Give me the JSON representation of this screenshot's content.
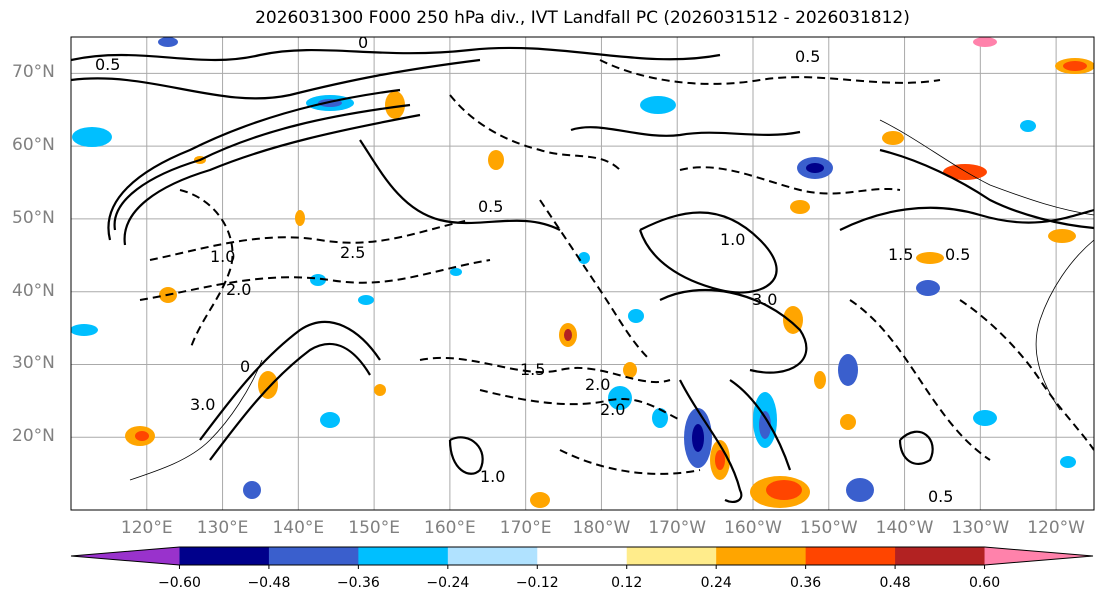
{
  "title": "2026031300 F000 250 hPa div., IVT Landfall PC (2026031512 - 2026031812)",
  "lat_labels": [
    "70°N",
    "60°N",
    "50°N",
    "40°N",
    "30°N",
    "20°N"
  ],
  "lon_labels": [
    "120°E",
    "130°E",
    "140°E",
    "150°E",
    "160°E",
    "170°E",
    "180°W",
    "170°W",
    "160°W",
    "150°W",
    "140°W",
    "130°W",
    "120°W"
  ],
  "contour_labels": [
    "0.5",
    "1.0",
    "1.5",
    "2.0",
    "2.5",
    "3.0",
    "0",
    "0.5",
    "1.0",
    "0.5",
    "1.5",
    "2.0",
    "3.0",
    "0.5",
    "0",
    "1.0",
    "0.5",
    "2.0"
  ],
  "colorbar": {
    "ticks": [
      "-0.60",
      "-0.48",
      "-0.36",
      "-0.24",
      "-0.12",
      "0.12",
      "0.24",
      "0.36",
      "0.48",
      "0.60"
    ],
    "colors": [
      "#9932cc",
      "#00008b",
      "#3a5fcd",
      "#00bfff",
      "#b0e2ff",
      "#ffffff",
      "#ffec8b",
      "#ffa500",
      "#ff4500",
      "#b22222",
      "#ff82ab"
    ]
  },
  "chart_data": {
    "type": "contour-map",
    "title": "2026031300 F000 250 hPa div., IVT Landfall PC (2026031512 - 2026031812)",
    "field_shaded": "250 hPa divergence",
    "field_contoured": "IVT Landfall PC",
    "lat_range": [
      10,
      75
    ],
    "lon_range_deg_east": [
      110,
      245
    ],
    "shading_levels": [
      -0.6,
      -0.48,
      -0.36,
      -0.24,
      -0.12,
      0.12,
      0.24,
      0.36,
      0.48,
      0.6
    ],
    "contour_interval": 0.5
  }
}
